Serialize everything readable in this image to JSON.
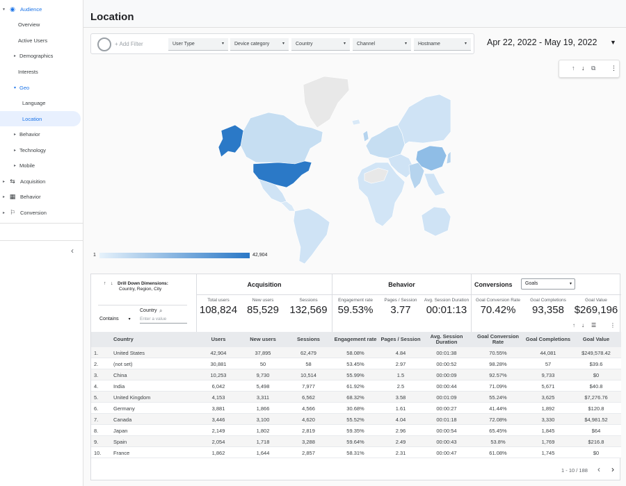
{
  "sidebar": {
    "items": [
      {
        "label": "Audience"
      },
      {
        "label": "Overview"
      },
      {
        "label": "Active Users"
      },
      {
        "label": "Demographics"
      },
      {
        "label": "Interests"
      },
      {
        "label": "Geo"
      },
      {
        "label": "Language"
      },
      {
        "label": "Location"
      },
      {
        "label": "Behavior"
      },
      {
        "label": "Technology"
      },
      {
        "label": "Mobile"
      },
      {
        "label": "Acquisition"
      },
      {
        "label": "Behavior"
      },
      {
        "label": "Conversion"
      }
    ]
  },
  "header": {
    "title": "Location"
  },
  "filters": {
    "add_filter": "+ Add Filter",
    "dropdowns": [
      "User Type",
      "Device category",
      "Country",
      "Channel",
      "Hostname"
    ]
  },
  "date_range": "Apr 22, 2022 - May 19, 2022",
  "map": {
    "legend_min": "1",
    "legend_max": "42,904",
    "scale_colors": {
      "low": "#e6f2fb",
      "high": "#2a78c6",
      "none": "#e8e8e8"
    }
  },
  "table": {
    "drill_title": "Drill Down Dimensions:",
    "drill_sub": "Country, Region, City",
    "dimension_label": "Country",
    "filter_mode": "Contains",
    "filter_placeholder": "Enter a value",
    "sections": {
      "acquisition": "Acquisition",
      "behavior": "Behavior",
      "conversions": "Conversions"
    },
    "goals_select": "Goals",
    "summary": [
      {
        "label": "Total users",
        "value": "108,824"
      },
      {
        "label": "New users",
        "value": "85,529"
      },
      {
        "label": "Sessions",
        "value": "132,569"
      },
      {
        "label": "Engagement rate",
        "value": "59.53%"
      },
      {
        "label": "Pages / Session",
        "value": "3.77"
      },
      {
        "label": "Avg. Session Duration",
        "value": "00:01:13"
      },
      {
        "label": "Goal Conversion Rate",
        "value": "70.42%"
      },
      {
        "label": "Goal Completions",
        "value": "93,358"
      },
      {
        "label": "Goal Value",
        "value": "$269,196"
      }
    ],
    "columns": [
      "Country",
      "Users",
      "New users",
      "Sessions",
      "Engagement rate",
      "Pages / Session",
      "Avg. Session Duration",
      "Goal Conversion Rate",
      "Goal Completions",
      "Goal Value"
    ],
    "rows": [
      {
        "n": "1.",
        "country": "United States",
        "users": "42,904",
        "new": "37,895",
        "sessions": "62,479",
        "eng": "58.08%",
        "pps": "4.84",
        "dur": "00:01:38",
        "gcr": "70.55%",
        "gc": "44,081",
        "gv": "$249,578.42"
      },
      {
        "n": "2.",
        "country": "(not set)",
        "users": "30,881",
        "new": "50",
        "sessions": "58",
        "eng": "53.45%",
        "pps": "2.97",
        "dur": "00:00:52",
        "gcr": "98.28%",
        "gc": "57",
        "gv": "$39.6"
      },
      {
        "n": "3.",
        "country": "China",
        "users": "10,253",
        "new": "9,730",
        "sessions": "10,514",
        "eng": "55.99%",
        "pps": "1.5",
        "dur": "00:00:09",
        "gcr": "92.57%",
        "gc": "9,733",
        "gv": "$0"
      },
      {
        "n": "4.",
        "country": "India",
        "users": "6,042",
        "new": "5,498",
        "sessions": "7,977",
        "eng": "61.92%",
        "pps": "2.5",
        "dur": "00:00:44",
        "gcr": "71.09%",
        "gc": "5,671",
        "gv": "$40.8"
      },
      {
        "n": "5.",
        "country": "United Kingdom",
        "users": "4,153",
        "new": "3,311",
        "sessions": "6,562",
        "eng": "68.32%",
        "pps": "3.58",
        "dur": "00:01:09",
        "gcr": "55.24%",
        "gc": "3,625",
        "gv": "$7,276.76"
      },
      {
        "n": "6.",
        "country": "Germany",
        "users": "3,881",
        "new": "1,866",
        "sessions": "4,566",
        "eng": "30.68%",
        "pps": "1.61",
        "dur": "00:00:27",
        "gcr": "41.44%",
        "gc": "1,892",
        "gv": "$120.8"
      },
      {
        "n": "7.",
        "country": "Canada",
        "users": "3,446",
        "new": "3,100",
        "sessions": "4,620",
        "eng": "55.52%",
        "pps": "4.04",
        "dur": "00:01:18",
        "gcr": "72.08%",
        "gc": "3,330",
        "gv": "$4,981.52"
      },
      {
        "n": "8.",
        "country": "Japan",
        "users": "2,149",
        "new": "1,802",
        "sessions": "2,819",
        "eng": "59.35%",
        "pps": "2.96",
        "dur": "00:00:54",
        "gcr": "65.45%",
        "gc": "1,845",
        "gv": "$64"
      },
      {
        "n": "9.",
        "country": "Spain",
        "users": "2,054",
        "new": "1,718",
        "sessions": "3,288",
        "eng": "59.64%",
        "pps": "2.49",
        "dur": "00:00:43",
        "gcr": "53.8%",
        "gc": "1,769",
        "gv": "$216.8"
      },
      {
        "n": "10.",
        "country": "France",
        "users": "1,862",
        "new": "1,644",
        "sessions": "2,857",
        "eng": "58.31%",
        "pps": "2.31",
        "dur": "00:00:47",
        "gcr": "61.08%",
        "gc": "1,745",
        "gv": "$0"
      }
    ],
    "pagination": "1 - 10 / 188"
  }
}
